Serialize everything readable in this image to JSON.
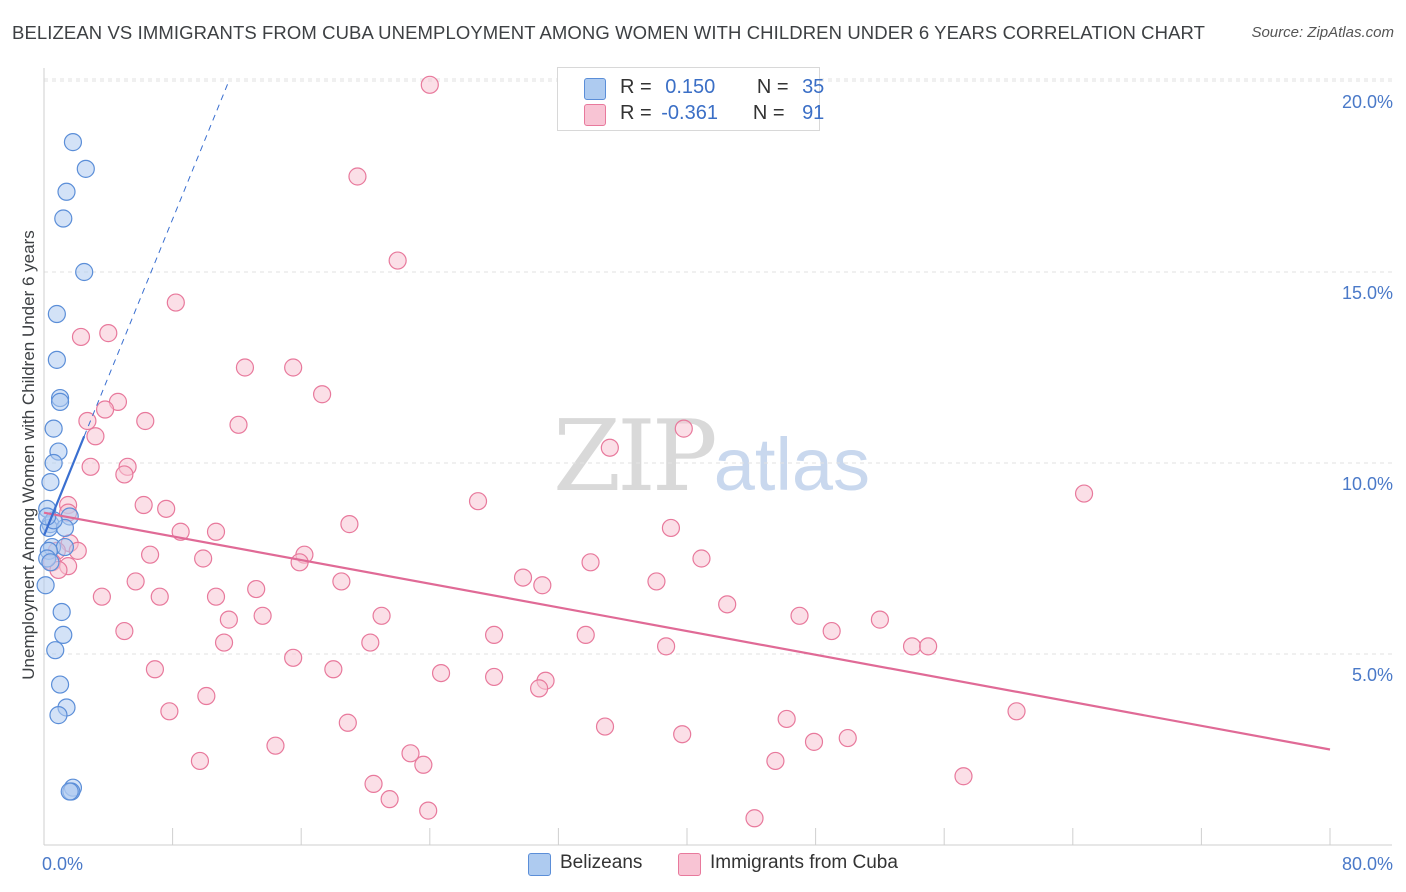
{
  "title": "BELIZEAN VS IMMIGRANTS FROM CUBA UNEMPLOYMENT AMONG WOMEN WITH CHILDREN UNDER 6 YEARS CORRELATION CHART",
  "source": "Source: ZipAtlas.com",
  "watermark": {
    "zip": "ZIP",
    "atlas": "atlas"
  },
  "legend_top": {
    "rows": [
      {
        "r_label": "R =",
        "r_value": "0.150",
        "n_label": "N =",
        "n_value": "35"
      },
      {
        "r_label": "R =",
        "r_value": "-0.361",
        "n_label": "N =",
        "n_value": "91"
      }
    ]
  },
  "legend_bottom": [
    "Belizeans",
    "Immigrants from Cuba"
  ],
  "colors": {
    "belizean_fill": "#aecbf0",
    "belizean_stroke": "#5b8ed8",
    "belizean_line": "#3a6fd0",
    "cuba_fill": "#f8c4d4",
    "cuba_stroke": "#e8799c",
    "cuba_line": "#e06a96",
    "grid": "#e2e2e2",
    "tick_label": "#4a79c8"
  },
  "chart_data": {
    "type": "scatter",
    "title": "BELIZEAN VS IMMIGRANTS FROM CUBA UNEMPLOYMENT AMONG WOMEN WITH CHILDREN UNDER 6 YEARS CORRELATION CHART",
    "xlabel": "",
    "ylabel": "Unemployment Among Women with Children Under 6 years",
    "xlim": [
      0,
      80
    ],
    "ylim": [
      0,
      20.5
    ],
    "x_tick_labels": [
      "0.0%",
      "80.0%"
    ],
    "y_ticks": [
      5,
      10,
      15,
      20
    ],
    "y_tick_labels": [
      "5.0%",
      "10.0%",
      "15.0%",
      "20.0%"
    ],
    "grid": true,
    "legend_position": "top-center",
    "series": [
      {
        "name": "Belizeans",
        "r": 0.15,
        "n": 35,
        "trend": {
          "x1": 0.0,
          "y1": 8.1,
          "x2": 2.5,
          "y2": 10.7,
          "dash_x2": 11.5,
          "dash_y2": 20.0
        },
        "points": [
          [
            1.8,
            18.4
          ],
          [
            2.6,
            17.7
          ],
          [
            1.4,
            17.1
          ],
          [
            1.2,
            16.4
          ],
          [
            2.5,
            15.0
          ],
          [
            0.8,
            13.9
          ],
          [
            0.8,
            12.7
          ],
          [
            1.0,
            11.7
          ],
          [
            1.0,
            11.6
          ],
          [
            0.6,
            10.9
          ],
          [
            0.9,
            10.3
          ],
          [
            0.6,
            10.0
          ],
          [
            0.4,
            9.5
          ],
          [
            0.2,
            8.8
          ],
          [
            1.6,
            8.6
          ],
          [
            0.4,
            8.4
          ],
          [
            0.3,
            8.3
          ],
          [
            1.3,
            8.3
          ],
          [
            0.5,
            7.8
          ],
          [
            1.3,
            7.8
          ],
          [
            0.3,
            7.7
          ],
          [
            0.2,
            7.5
          ],
          [
            0.4,
            7.4
          ],
          [
            0.1,
            6.8
          ],
          [
            1.1,
            6.1
          ],
          [
            1.2,
            5.5
          ],
          [
            0.7,
            5.1
          ],
          [
            1.0,
            4.2
          ],
          [
            1.4,
            3.6
          ],
          [
            0.9,
            3.4
          ],
          [
            1.8,
            1.5
          ],
          [
            1.7,
            1.4
          ],
          [
            1.6,
            1.4
          ],
          [
            0.6,
            8.5
          ],
          [
            0.2,
            8.6
          ]
        ]
      },
      {
        "name": "Immigrants from Cuba",
        "r": -0.361,
        "n": 91,
        "trend": {
          "x1": 0.0,
          "y1": 8.7,
          "x2": 80.0,
          "y2": 2.5
        },
        "points": [
          [
            24.0,
            19.9
          ],
          [
            19.5,
            17.5
          ],
          [
            22.0,
            15.3
          ],
          [
            8.2,
            14.2
          ],
          [
            4.0,
            13.4
          ],
          [
            2.3,
            13.3
          ],
          [
            12.5,
            12.5
          ],
          [
            15.5,
            12.5
          ],
          [
            17.3,
            11.8
          ],
          [
            4.6,
            11.6
          ],
          [
            3.8,
            11.4
          ],
          [
            6.3,
            11.1
          ],
          [
            2.7,
            11.1
          ],
          [
            12.1,
            11.0
          ],
          [
            39.8,
            10.9
          ],
          [
            3.2,
            10.7
          ],
          [
            35.2,
            10.4
          ],
          [
            2.9,
            9.9
          ],
          [
            5.2,
            9.9
          ],
          [
            5.0,
            9.7
          ],
          [
            64.7,
            9.2
          ],
          [
            27.0,
            9.0
          ],
          [
            1.5,
            8.9
          ],
          [
            6.2,
            8.9
          ],
          [
            7.6,
            8.8
          ],
          [
            1.5,
            8.7
          ],
          [
            19.0,
            8.4
          ],
          [
            39.0,
            8.3
          ],
          [
            8.5,
            8.2
          ],
          [
            10.7,
            8.2
          ],
          [
            1.6,
            7.9
          ],
          [
            0.8,
            7.7
          ],
          [
            2.1,
            7.7
          ],
          [
            6.6,
            7.6
          ],
          [
            16.2,
            7.6
          ],
          [
            9.9,
            7.5
          ],
          [
            40.9,
            7.5
          ],
          [
            0.5,
            7.4
          ],
          [
            15.9,
            7.4
          ],
          [
            34.0,
            7.4
          ],
          [
            1.5,
            7.3
          ],
          [
            0.9,
            7.2
          ],
          [
            29.8,
            7.0
          ],
          [
            5.7,
            6.9
          ],
          [
            18.5,
            6.9
          ],
          [
            38.1,
            6.9
          ],
          [
            31.0,
            6.8
          ],
          [
            13.2,
            6.7
          ],
          [
            3.6,
            6.5
          ],
          [
            7.2,
            6.5
          ],
          [
            10.7,
            6.5
          ],
          [
            42.5,
            6.3
          ],
          [
            21.0,
            6.0
          ],
          [
            13.6,
            6.0
          ],
          [
            47.0,
            6.0
          ],
          [
            11.5,
            5.9
          ],
          [
            52.0,
            5.9
          ],
          [
            5.0,
            5.6
          ],
          [
            49.0,
            5.6
          ],
          [
            28.0,
            5.5
          ],
          [
            33.7,
            5.5
          ],
          [
            11.2,
            5.3
          ],
          [
            20.3,
            5.3
          ],
          [
            38.7,
            5.2
          ],
          [
            54.0,
            5.2
          ],
          [
            55.0,
            5.2
          ],
          [
            15.5,
            4.9
          ],
          [
            6.9,
            4.6
          ],
          [
            18.0,
            4.6
          ],
          [
            24.7,
            4.5
          ],
          [
            28.0,
            4.4
          ],
          [
            31.2,
            4.3
          ],
          [
            30.8,
            4.1
          ],
          [
            10.1,
            3.9
          ],
          [
            7.8,
            3.5
          ],
          [
            60.5,
            3.5
          ],
          [
            46.2,
            3.3
          ],
          [
            18.9,
            3.2
          ],
          [
            34.9,
            3.1
          ],
          [
            39.7,
            2.9
          ],
          [
            50.0,
            2.8
          ],
          [
            47.9,
            2.7
          ],
          [
            14.4,
            2.6
          ],
          [
            22.8,
            2.4
          ],
          [
            9.7,
            2.2
          ],
          [
            45.5,
            2.2
          ],
          [
            23.6,
            2.1
          ],
          [
            57.2,
            1.8
          ],
          [
            20.5,
            1.6
          ],
          [
            21.5,
            1.2
          ],
          [
            23.9,
            0.9
          ],
          [
            44.2,
            0.7
          ]
        ]
      }
    ]
  }
}
